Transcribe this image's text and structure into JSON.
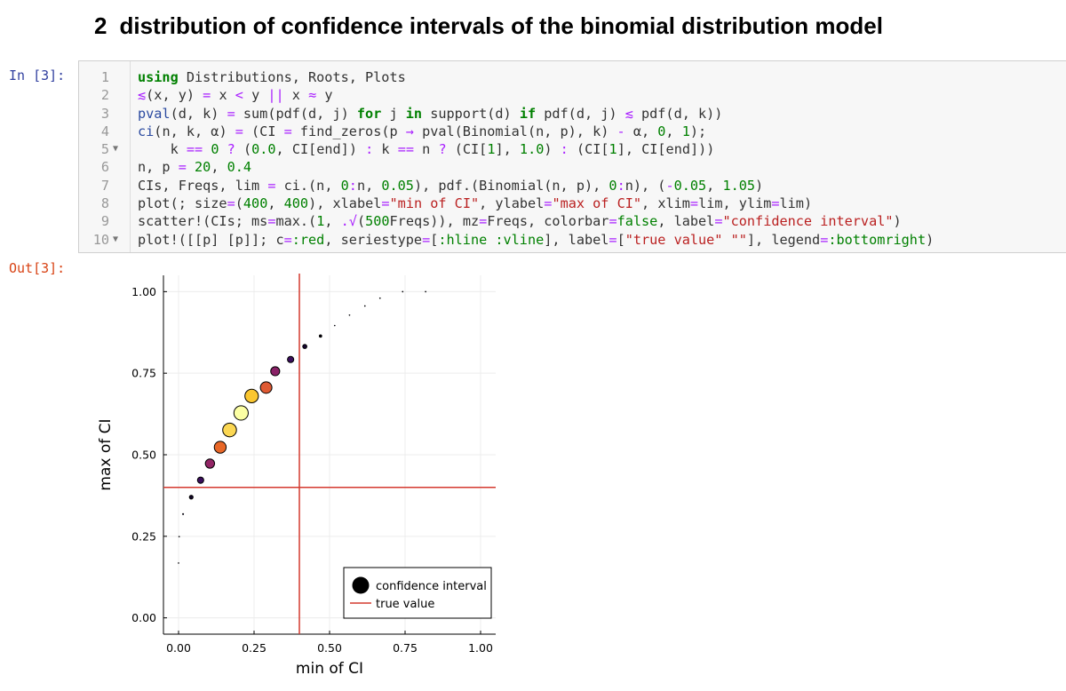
{
  "heading": {
    "number": "2",
    "title": "distribution of confidence intervals of the binomial distribution model"
  },
  "input_prompt": "In [3]:",
  "output_prompt": "Out[3]:",
  "code_lines": [
    {
      "n": "1",
      "fold": "",
      "segs": [
        [
          "kw",
          "using"
        ],
        [
          "pl",
          " Distributions, Roots, Plots"
        ]
      ]
    },
    {
      "n": "2",
      "fold": "",
      "segs": [
        [
          "op",
          "≲"
        ],
        [
          "pl",
          "(x, y) "
        ],
        [
          "op",
          "="
        ],
        [
          "pl",
          " x "
        ],
        [
          "op",
          "<"
        ],
        [
          "pl",
          " y "
        ],
        [
          "op",
          "||"
        ],
        [
          "pl",
          " x "
        ],
        [
          "op",
          "≈"
        ],
        [
          "pl",
          " y"
        ]
      ]
    },
    {
      "n": "3",
      "fold": "",
      "segs": [
        [
          "fn",
          "pval"
        ],
        [
          "pl",
          "(d, k) "
        ],
        [
          "op",
          "="
        ],
        [
          "pl",
          " sum(pdf(d, j) "
        ],
        [
          "kw",
          "for"
        ],
        [
          "pl",
          " j "
        ],
        [
          "kw",
          "in"
        ],
        [
          "pl",
          " support(d) "
        ],
        [
          "kw",
          "if"
        ],
        [
          "pl",
          " pdf(d, j) "
        ],
        [
          "op",
          "≲"
        ],
        [
          "pl",
          " pdf(d, k))"
        ]
      ]
    },
    {
      "n": "4",
      "fold": "",
      "segs": [
        [
          "fn",
          "ci"
        ],
        [
          "pl",
          "(n, k, α) "
        ],
        [
          "op",
          "="
        ],
        [
          "pl",
          " (CI "
        ],
        [
          "op",
          "="
        ],
        [
          "pl",
          " find_zeros(p "
        ],
        [
          "op",
          "→"
        ],
        [
          "pl",
          " pval(Binomial(n, p), k) "
        ],
        [
          "op",
          "-"
        ],
        [
          "pl",
          " α, "
        ],
        [
          "nm",
          "0"
        ],
        [
          "pl",
          ", "
        ],
        [
          "nm",
          "1"
        ],
        [
          "pl",
          ");"
        ]
      ]
    },
    {
      "n": "5",
      "fold": "▼",
      "segs": [
        [
          "pl",
          "    k "
        ],
        [
          "op",
          "=="
        ],
        [
          "pl",
          " "
        ],
        [
          "nm",
          "0"
        ],
        [
          "pl",
          " "
        ],
        [
          "op",
          "?"
        ],
        [
          "pl",
          " ("
        ],
        [
          "nm",
          "0.0"
        ],
        [
          "pl",
          ", CI[end]) "
        ],
        [
          "op",
          ":"
        ],
        [
          "pl",
          " k "
        ],
        [
          "op",
          "=="
        ],
        [
          "pl",
          " n "
        ],
        [
          "op",
          "?"
        ],
        [
          "pl",
          " (CI["
        ],
        [
          "nm",
          "1"
        ],
        [
          "pl",
          "], "
        ],
        [
          "nm",
          "1.0"
        ],
        [
          "pl",
          ") "
        ],
        [
          "op",
          ":"
        ],
        [
          "pl",
          " (CI["
        ],
        [
          "nm",
          "1"
        ],
        [
          "pl",
          "], CI[end]))"
        ]
      ]
    },
    {
      "n": "6",
      "fold": "",
      "segs": [
        [
          "pl",
          "n, p "
        ],
        [
          "op",
          "="
        ],
        [
          "pl",
          " "
        ],
        [
          "nm",
          "20"
        ],
        [
          "pl",
          ", "
        ],
        [
          "nm",
          "0.4"
        ]
      ]
    },
    {
      "n": "7",
      "fold": "",
      "segs": [
        [
          "pl",
          "CIs, Freqs, lim "
        ],
        [
          "op",
          "="
        ],
        [
          "pl",
          " ci.(n, "
        ],
        [
          "nm",
          "0"
        ],
        [
          "op",
          ":"
        ],
        [
          "pl",
          "n, "
        ],
        [
          "nm",
          "0.05"
        ],
        [
          "pl",
          "), pdf.(Binomial(n, p), "
        ],
        [
          "nm",
          "0"
        ],
        [
          "op",
          ":"
        ],
        [
          "pl",
          "n), ("
        ],
        [
          "op",
          "-"
        ],
        [
          "nm",
          "0.05"
        ],
        [
          "pl",
          ", "
        ],
        [
          "nm",
          "1.05"
        ],
        [
          "pl",
          ")"
        ]
      ]
    },
    {
      "n": "8",
      "fold": "",
      "segs": [
        [
          "pl",
          "plot(; size"
        ],
        [
          "op",
          "="
        ],
        [
          "pl",
          "("
        ],
        [
          "nm",
          "400"
        ],
        [
          "pl",
          ", "
        ],
        [
          "nm",
          "400"
        ],
        [
          "pl",
          "), xlabel"
        ],
        [
          "op",
          "="
        ],
        [
          "str",
          "\"min of CI\""
        ],
        [
          "pl",
          ", ylabel"
        ],
        [
          "op",
          "="
        ],
        [
          "str",
          "\"max of CI\""
        ],
        [
          "pl",
          ", xlim"
        ],
        [
          "op",
          "="
        ],
        [
          "pl",
          "lim, ylim"
        ],
        [
          "op",
          "="
        ],
        [
          "pl",
          "lim)"
        ]
      ]
    },
    {
      "n": "9",
      "fold": "",
      "segs": [
        [
          "pl",
          "scatter!(CIs; ms"
        ],
        [
          "op",
          "="
        ],
        [
          "pl",
          "max.("
        ],
        [
          "nm",
          "1"
        ],
        [
          "pl",
          ", "
        ],
        [
          "op",
          ".√"
        ],
        [
          "pl",
          "("
        ],
        [
          "nm",
          "500"
        ],
        [
          "pl",
          "Freqs)), mz"
        ],
        [
          "op",
          "="
        ],
        [
          "pl",
          "Freqs, colorbar"
        ],
        [
          "op",
          "="
        ],
        [
          "nm",
          "false"
        ],
        [
          "pl",
          ", label"
        ],
        [
          "op",
          "="
        ],
        [
          "str",
          "\"confidence interval\""
        ],
        [
          "pl",
          ")"
        ]
      ]
    },
    {
      "n": "10",
      "fold": "▼",
      "segs": [
        [
          "pl",
          "plot!([[p] [p]]; c"
        ],
        [
          "op",
          "="
        ],
        [
          "sym",
          ":red"
        ],
        [
          "pl",
          ", seriestype"
        ],
        [
          "op",
          "="
        ],
        [
          "pl",
          "["
        ],
        [
          "sym",
          ":hline :vline"
        ],
        [
          "pl",
          "], label"
        ],
        [
          "op",
          "="
        ],
        [
          "pl",
          "["
        ],
        [
          "str",
          "\"true value\""
        ],
        [
          "pl",
          " "
        ],
        [
          "str",
          "\"\""
        ],
        [
          "pl",
          "], legend"
        ],
        [
          "op",
          "="
        ],
        [
          "sym",
          ":bottomright"
        ],
        [
          "pl",
          ")"
        ]
      ]
    }
  ],
  "colors": {
    "true_value_line": "#d43a2f",
    "marker_edge": "#000000"
  },
  "chart_data": {
    "type": "scatter",
    "xlabel": "min of CI",
    "ylabel": "max of CI",
    "xlim": [
      -0.05,
      1.05
    ],
    "ylim": [
      -0.05,
      1.05
    ],
    "xticks": [
      0.0,
      0.25,
      0.5,
      0.75,
      1.0
    ],
    "yticks": [
      0.0,
      0.25,
      0.5,
      0.75,
      1.0
    ],
    "xtick_labels": [
      "0.00",
      "0.25",
      "0.50",
      "0.75",
      "1.00"
    ],
    "ytick_labels": [
      "0.00",
      "0.25",
      "0.50",
      "0.75",
      "1.00"
    ],
    "grid": true,
    "legend": "bottom-right",
    "legend_entries": [
      "confidence interval",
      "true value"
    ],
    "true_value": 0.4,
    "series": [
      {
        "name": "confidence interval",
        "points": [
          {
            "x": 0.0,
            "y": 0.168,
            "freq": 4e-05
          },
          {
            "x": 0.002,
            "y": 0.249,
            "freq": 0.0005
          },
          {
            "x": 0.015,
            "y": 0.318,
            "freq": 0.003
          },
          {
            "x": 0.042,
            "y": 0.37,
            "freq": 0.012
          },
          {
            "x": 0.073,
            "y": 0.422,
            "freq": 0.035
          },
          {
            "x": 0.104,
            "y": 0.473,
            "freq": 0.075
          },
          {
            "x": 0.138,
            "y": 0.523,
            "freq": 0.124
          },
          {
            "x": 0.169,
            "y": 0.576,
            "freq": 0.166
          },
          {
            "x": 0.207,
            "y": 0.628,
            "freq": 0.18
          },
          {
            "x": 0.242,
            "y": 0.68,
            "freq": 0.16
          },
          {
            "x": 0.29,
            "y": 0.706,
            "freq": 0.117
          },
          {
            "x": 0.32,
            "y": 0.756,
            "freq": 0.071
          },
          {
            "x": 0.371,
            "y": 0.792,
            "freq": 0.035
          },
          {
            "x": 0.418,
            "y": 0.832,
            "freq": 0.015
          },
          {
            "x": 0.47,
            "y": 0.864,
            "freq": 0.005
          },
          {
            "x": 0.517,
            "y": 0.896,
            "freq": 0.001
          },
          {
            "x": 0.566,
            "y": 0.928,
            "freq": 0.0003
          },
          {
            "x": 0.617,
            "y": 0.956,
            "freq": 5e-05
          },
          {
            "x": 0.667,
            "y": 0.98,
            "freq": 1e-05
          },
          {
            "x": 0.742,
            "y": 1.0,
            "freq": 0.0
          },
          {
            "x": 0.818,
            "y": 1.0,
            "freq": 0.0
          }
        ]
      }
    ]
  }
}
